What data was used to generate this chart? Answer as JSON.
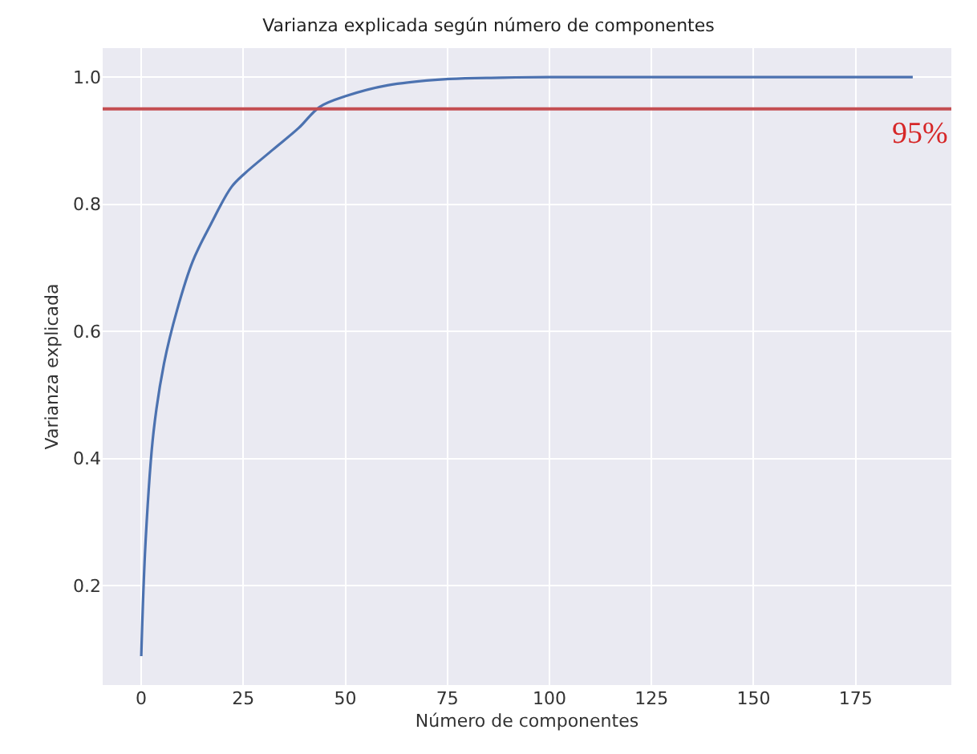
{
  "chart_data": {
    "type": "line",
    "title": "Varianza explicada según número de componentes",
    "xlabel": "Número de componentes",
    "ylabel": "Varianza explicada",
    "series": [
      {
        "color": "#4c72b0",
        "x": [
          0,
          1.1,
          3.0,
          5.6,
          8.8,
          12.6,
          17.0,
          22.1,
          25.3,
          32.3,
          38.6,
          43.7,
          50.1,
          60.3,
          75.5,
          88,
          100,
          189
        ],
        "values": [
          0.089,
          0.274,
          0.441,
          0.55,
          0.634,
          0.71,
          0.768,
          0.827,
          0.848,
          0.886,
          0.92,
          0.953,
          0.97,
          0.987,
          0.997,
          0.999,
          1.0,
          1.0
        ]
      }
    ],
    "xlim": [
      -9.45,
      198.45
    ],
    "xticks": [
      0,
      25,
      50,
      75,
      100,
      125,
      150,
      175
    ],
    "ylim": [
      0.0435,
      1.0455
    ],
    "yticks": [
      0.2,
      0.4,
      0.6,
      0.8,
      {
        "value": 1,
        "label": "1.0"
      }
    ],
    "ref_lines": [
      {
        "axis": "y",
        "value": 0.95,
        "color": "#c44e52"
      }
    ],
    "annotations": [
      "95%"
    ],
    "grid": true
  }
}
